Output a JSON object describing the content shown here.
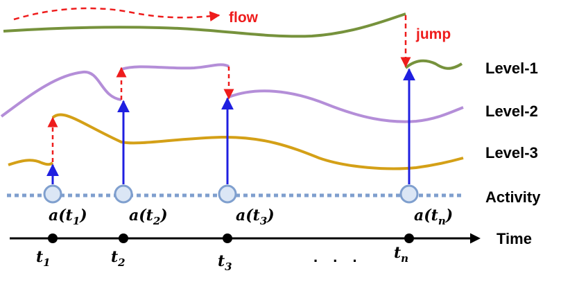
{
  "annotations": {
    "flow": "flow",
    "jump": "jump"
  },
  "levels": {
    "level1": "Level-1",
    "level2": "Level-2",
    "level3": "Level-3",
    "activity": "Activity"
  },
  "time_axis": {
    "label": "Time",
    "ellipsis": ". . ."
  },
  "activity_points": [
    {
      "base": "a(t",
      "sub": "1",
      "close": ")"
    },
    {
      "base": "a(t",
      "sub": "2",
      "close": ")"
    },
    {
      "base": "a(t",
      "sub": "3",
      "close": ")"
    },
    {
      "base": "a(t",
      "sub": "n",
      "close": ")"
    }
  ],
  "time_points": [
    {
      "base": "t",
      "sub": "1"
    },
    {
      "base": "t",
      "sub": "2"
    },
    {
      "base": "t",
      "sub": "3"
    },
    {
      "base": "t",
      "sub": "n"
    }
  ],
  "colors": {
    "level1": "#76923c",
    "level2": "#b48ed8",
    "level3": "#d4a017",
    "activity": "#7f9fce",
    "jump_arrow": "#ee1c1c",
    "up_arrow": "#1f1fe0",
    "axis": "#000000"
  }
}
